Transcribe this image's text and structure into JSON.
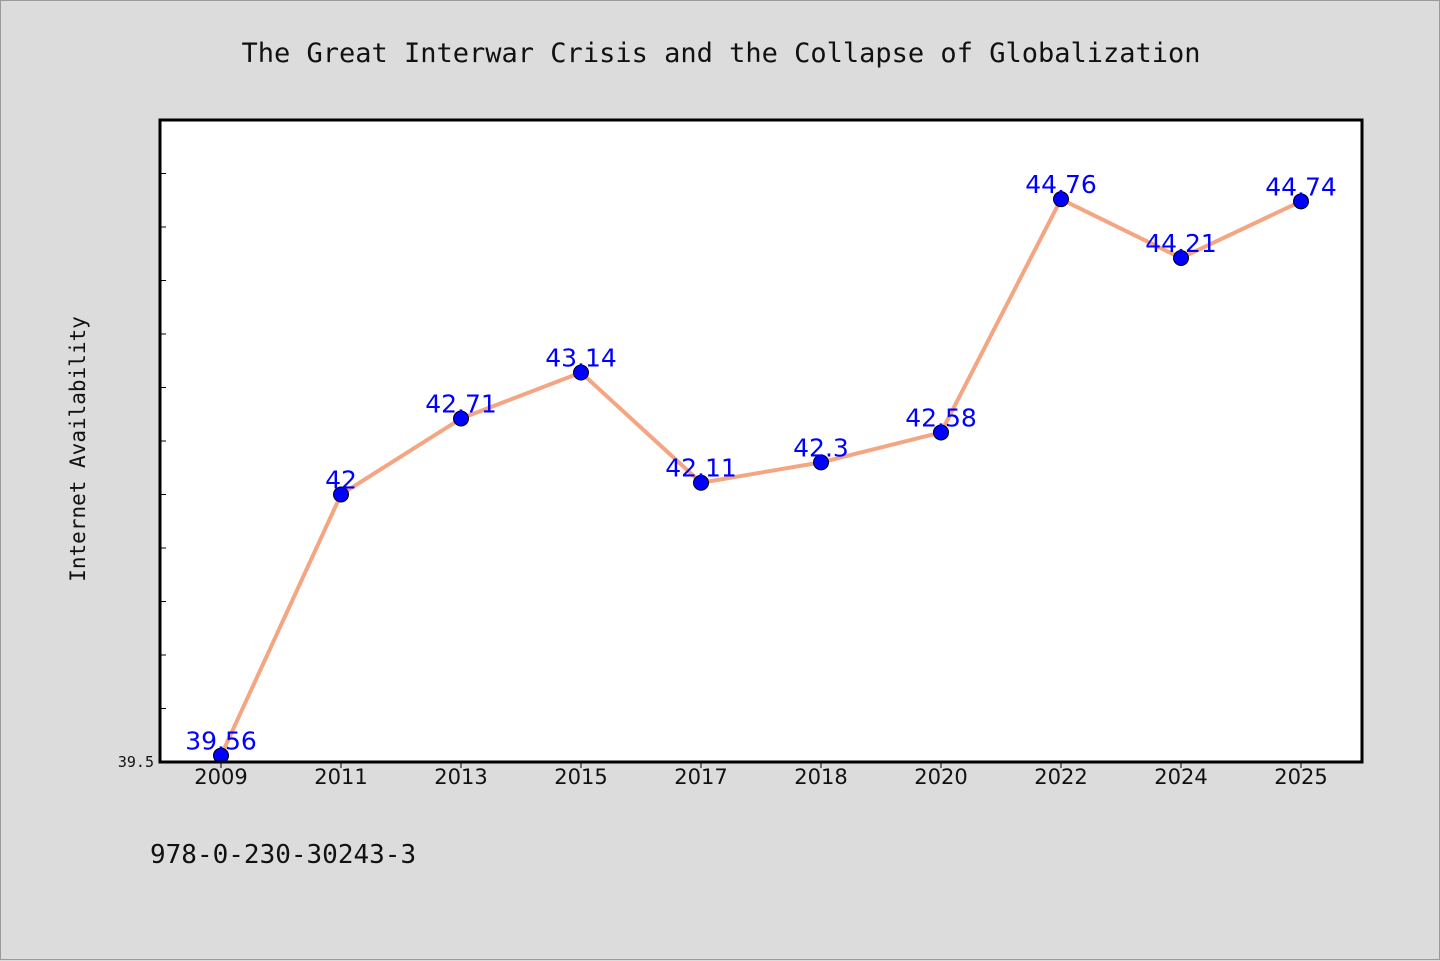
{
  "caption": "978-0-230-30243-3",
  "chart_data": {
    "type": "line",
    "title": "The Great Interwar Crisis and the Collapse of Globalization",
    "xlabel": "",
    "ylabel": "Internet Availability",
    "categories": [
      "2009",
      "2011",
      "2013",
      "2015",
      "2017",
      "2018",
      "2020",
      "2022",
      "2024",
      "2025"
    ],
    "series": [
      {
        "values": [
          39.56,
          42,
          42.71,
          43.14,
          42.11,
          42.3,
          42.58,
          44.76,
          44.21,
          44.74
        ],
        "labels": [
          "39.56",
          "42",
          "42.71",
          "43.14",
          "42.11",
          "42.3",
          "42.58",
          "44.76",
          "44.21",
          "44.74"
        ],
        "line_color": "#f4a582",
        "marker_color": "#0000ff"
      }
    ],
    "ylim": [
      39.5,
      45.5
    ],
    "ytick_labels": [
      "39.5"
    ],
    "grid": false,
    "legend": "none"
  }
}
